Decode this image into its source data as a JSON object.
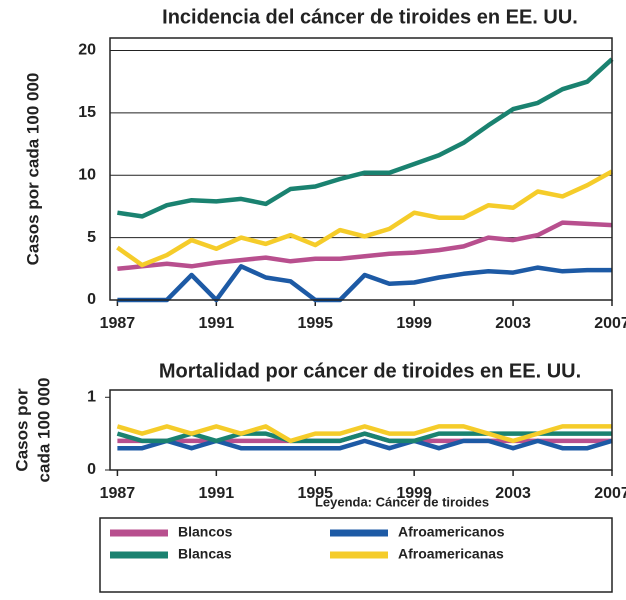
{
  "chart_data": [
    {
      "type": "line",
      "title": "Incidencia del cáncer de tiroides en EE. UU.",
      "ylabel": [
        "Casos por cada 100 000"
      ],
      "x": [
        1987,
        1988,
        1989,
        1990,
        1991,
        1992,
        1993,
        1994,
        1995,
        1996,
        1997,
        1998,
        1999,
        2000,
        2001,
        2002,
        2003,
        2004,
        2005,
        2006,
        2007
      ],
      "xlim": [
        1986.7,
        2007
      ],
      "xticks": [
        1987,
        1991,
        1995,
        1999,
        2003,
        2007
      ],
      "ylim": [
        0,
        21
      ],
      "yticks": [
        0,
        5,
        10,
        15,
        20
      ],
      "grid": true,
      "series": [
        {
          "name": "Blancos",
          "color": "#b84f8e",
          "values": [
            2.5,
            2.7,
            2.9,
            2.7,
            3.0,
            3.2,
            3.4,
            3.1,
            3.3,
            3.3,
            3.5,
            3.7,
            3.8,
            4.0,
            4.3,
            5.0,
            4.8,
            5.2,
            6.2,
            6.1,
            6.0
          ]
        },
        {
          "name": "Afroamericanos",
          "color": "#1d5aa5",
          "values": [
            0,
            0,
            0,
            2.0,
            0,
            2.7,
            1.8,
            1.5,
            0,
            0,
            2.0,
            1.3,
            1.4,
            1.8,
            2.1,
            2.3,
            2.2,
            2.6,
            2.3,
            2.4,
            2.4
          ]
        },
        {
          "name": "Blancas",
          "color": "#1a8270",
          "values": [
            7.0,
            6.7,
            7.6,
            8.0,
            7.9,
            8.1,
            7.7,
            8.9,
            9.1,
            9.7,
            10.2,
            10.2,
            10.9,
            11.6,
            12.6,
            14.0,
            15.3,
            15.8,
            16.9,
            17.5,
            19.3
          ]
        },
        {
          "name": "Afroamericanas",
          "color": "#f5cc2a",
          "values": [
            4.2,
            2.8,
            3.6,
            4.8,
            4.1,
            5.0,
            4.5,
            5.2,
            4.4,
            5.6,
            5.1,
            5.7,
            7.0,
            6.6,
            6.6,
            7.6,
            7.4,
            8.7,
            8.3,
            9.2,
            10.3
          ]
        }
      ]
    },
    {
      "type": "line",
      "title": "Mortalidad por cáncer de tiroides en EE. UU.",
      "ylabel": [
        "Casos por",
        "cada 100 000"
      ],
      "x": [
        1987,
        1988,
        1989,
        1990,
        1991,
        1992,
        1993,
        1994,
        1995,
        1996,
        1997,
        1998,
        1999,
        2000,
        2001,
        2002,
        2003,
        2004,
        2005,
        2006,
        2007
      ],
      "xlim": [
        1986.7,
        2007
      ],
      "xticks": [
        1987,
        1991,
        1995,
        1999,
        2003,
        2007
      ],
      "ylim": [
        0,
        1.1
      ],
      "yticks": [
        0,
        1
      ],
      "grid": false,
      "series": [
        {
          "color": "#b84f8e",
          "values": [
            0.4,
            0.4,
            0.4,
            0.4,
            0.4,
            0.4,
            0.4,
            0.4,
            0.4,
            0.4,
            0.5,
            0.4,
            0.4,
            0.4,
            0.4,
            0.4,
            0.4,
            0.4,
            0.4,
            0.4,
            0.4
          ]
        },
        {
          "color": "#1d5aa5",
          "values": [
            0.3,
            0.3,
            0.4,
            0.3,
            0.4,
            0.3,
            0.3,
            0.3,
            0.3,
            0.3,
            0.4,
            0.3,
            0.4,
            0.3,
            0.4,
            0.4,
            0.3,
            0.4,
            0.3,
            0.3,
            0.4
          ]
        },
        {
          "color": "#1a8270",
          "values": [
            0.5,
            0.4,
            0.4,
            0.5,
            0.4,
            0.5,
            0.5,
            0.4,
            0.4,
            0.4,
            0.5,
            0.4,
            0.4,
            0.5,
            0.5,
            0.5,
            0.5,
            0.5,
            0.5,
            0.5,
            0.5
          ]
        },
        {
          "color": "#f5cc2a",
          "values": [
            0.6,
            0.5,
            0.6,
            0.5,
            0.6,
            0.5,
            0.6,
            0.4,
            0.5,
            0.5,
            0.6,
            0.5,
            0.5,
            0.6,
            0.6,
            0.5,
            0.4,
            0.5,
            0.6,
            0.6,
            0.6
          ]
        }
      ]
    }
  ],
  "legend_title": "Leyenda: Cáncer de tiroides"
}
